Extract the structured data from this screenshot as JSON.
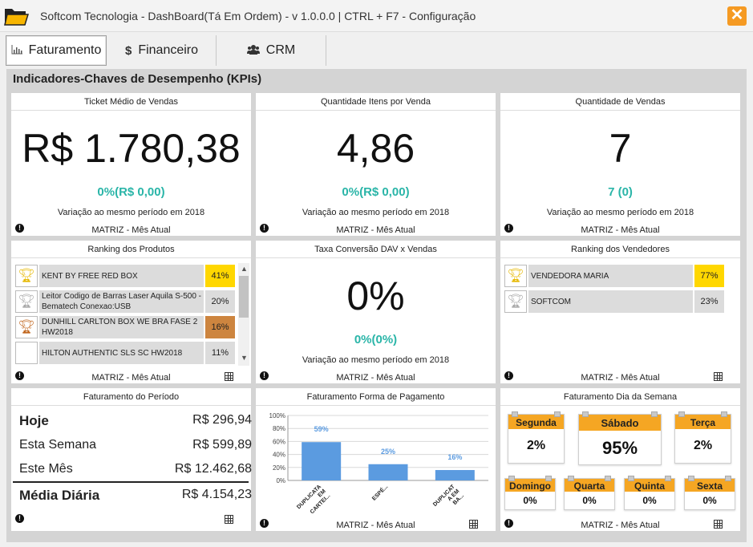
{
  "window": {
    "title": "Softcom Tecnologia - DashBoard(Tá Em Ordem) - v 1.0.0.0 | CTRL + F7 - Configuração",
    "close_label": "✕"
  },
  "tabs": [
    {
      "label": "Faturamento",
      "icon": "bar-chart-icon",
      "active": true
    },
    {
      "label": "Financeiro",
      "icon": "dollar-icon",
      "active": false
    },
    {
      "label": "CRM",
      "icon": "users-icon",
      "active": false
    }
  ],
  "section_title": "Indicadores-Chaves de Desempenho (KPIs)",
  "kpis": {
    "ticket": {
      "title": "Ticket Médio de Vendas",
      "value": "R$ 1.780,38",
      "variation": "0%(R$ 0,00)",
      "comparison": "Variação ao mesmo período em 2018",
      "footer": "MATRIZ - Mês Atual"
    },
    "itens": {
      "title": "Quantidade Itens por Venda",
      "value": "4,86",
      "variation": "0%(R$ 0,00)",
      "comparison": "Variação ao mesmo período em 2018",
      "footer": "MATRIZ - Mês Atual"
    },
    "vendas": {
      "title": "Quantidade de Vendas",
      "value": "7",
      "variation": "7 (0)",
      "comparison": "Variação ao mesmo período em 2018",
      "footer": "MATRIZ - Mês Atual"
    },
    "conversao": {
      "title": "Taxa Conversão DAV x Vendas",
      "value": "0%",
      "variation": "0%(0%)",
      "comparison": "Variação ao mesmo período em 2018",
      "footer": "MATRIZ - Mês Atual"
    }
  },
  "ranking_produtos": {
    "title": "Ranking dos Produtos",
    "footer": "MATRIZ - Mês Atual",
    "items": [
      {
        "name": "KENT BY FREE RED BOX",
        "pct": "41%",
        "trophy": "gold-trophy-icon",
        "color": "#ffd700"
      },
      {
        "name": "Leitor Codigo de Barras Laser Aquila S-500 - Bematech Conexao:USB",
        "pct": "20%",
        "trophy": "silver-trophy-icon",
        "color": "#dcdcdc"
      },
      {
        "name": "DUNHILL CARLTON BOX WE BRA FASE 2 HW2018",
        "pct": "16%",
        "trophy": "bronze-trophy-icon",
        "color": "#cd853f"
      },
      {
        "name": "HILTON AUTHENTIC SLS SC HW2018",
        "pct": "11%",
        "trophy": "",
        "color": "#dcdcdc"
      }
    ]
  },
  "ranking_vendedores": {
    "title": "Ranking dos Vendedores",
    "footer": "MATRIZ - Mês Atual",
    "items": [
      {
        "name": "VENDEDORA MARIA",
        "pct": "77%",
        "trophy": "gold-trophy-icon",
        "color": "#ffd700"
      },
      {
        "name": "SOFTCOM",
        "pct": "23%",
        "trophy": "silver-trophy-icon",
        "color": "#dcdcdc"
      }
    ]
  },
  "faturamento_periodo": {
    "title": "Faturamento do Período",
    "rows": [
      {
        "label": "Hoje",
        "value": "R$ 296,94",
        "bold": true
      },
      {
        "label": "Esta Semana",
        "value": "R$ 599,89",
        "bold": false
      },
      {
        "label": "Este Mês",
        "value": "R$ 12.462,68",
        "bold": false
      },
      {
        "label": "Média Diária",
        "value": "R$ 4.154,23",
        "bold": true
      }
    ]
  },
  "forma_pagamento": {
    "title": "Faturamento Forma de Pagamento",
    "footer": "MATRIZ - Mês Atual"
  },
  "chart_data": {
    "type": "bar",
    "categories": [
      "DUPLICATA EM CARTEI...",
      "ESPÉ...",
      "DUPLICAT A EM BA..."
    ],
    "values": [
      59,
      25,
      16
    ],
    "data_labels": [
      "59%",
      "25%",
      "16%"
    ],
    "yticks": [
      "100%",
      "80%",
      "60%",
      "40%",
      "20%",
      "0%"
    ],
    "ylim": [
      0,
      100
    ],
    "color": "#5b9be0",
    "grid": true
  },
  "dia_semana": {
    "title": "Faturamento Dia da Semana",
    "footer": "MATRIZ - Mês Atual",
    "top": [
      {
        "day": "Segunda",
        "value": "2%"
      },
      {
        "day": "Sábado",
        "value": "95%"
      },
      {
        "day": "Terça",
        "value": "2%"
      }
    ],
    "bottom": [
      {
        "day": "Domingo",
        "value": "0%"
      },
      {
        "day": "Quarta",
        "value": "0%"
      },
      {
        "day": "Quinta",
        "value": "0%"
      },
      {
        "day": "Sexta",
        "value": "0%"
      }
    ]
  },
  "colors": {
    "accent_teal": "#2ab5a8",
    "orange": "#f5a623",
    "bar_blue": "#5b9be0"
  }
}
